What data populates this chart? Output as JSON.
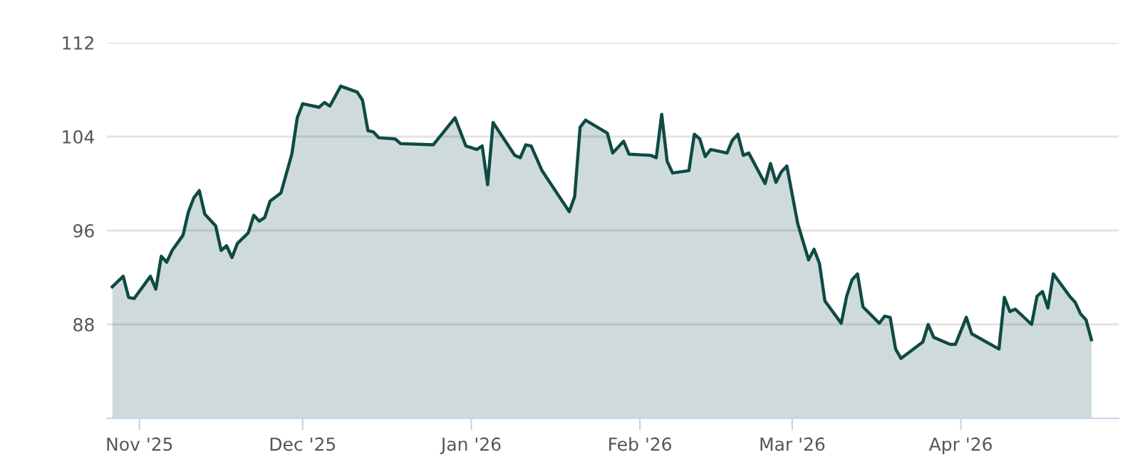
{
  "chart_data": {
    "type": "area",
    "x": [
      "2025-10-27",
      "2025-10-29",
      "2025-10-30",
      "2025-10-31",
      "2025-11-03",
      "2025-11-04",
      "2025-11-05",
      "2025-11-06",
      "2025-11-07",
      "2025-11-09",
      "2025-11-10",
      "2025-11-11",
      "2025-11-12",
      "2025-11-13",
      "2025-11-15",
      "2025-11-16",
      "2025-11-17",
      "2025-11-18",
      "2025-11-19",
      "2025-11-21",
      "2025-11-22",
      "2025-11-23",
      "2025-11-24",
      "2025-11-25",
      "2025-11-27",
      "2025-11-29",
      "2025-11-30",
      "2025-12-01",
      "2025-12-04",
      "2025-12-05",
      "2025-12-06",
      "2025-12-08",
      "2025-12-11",
      "2025-12-12",
      "2025-12-13",
      "2025-12-14",
      "2025-12-15",
      "2025-12-18",
      "2025-12-19",
      "2025-12-25",
      "2025-12-29",
      "2025-12-31",
      "2026-01-02",
      "2026-01-03",
      "2026-01-04",
      "2026-01-05",
      "2026-01-09",
      "2026-01-10",
      "2026-01-11",
      "2026-01-12",
      "2026-01-14",
      "2026-01-19",
      "2026-01-20",
      "2026-01-21",
      "2026-01-22",
      "2026-01-26",
      "2026-01-27",
      "2026-01-29",
      "2026-01-30",
      "2026-02-03",
      "2026-02-04",
      "2026-02-05",
      "2026-02-06",
      "2026-02-07",
      "2026-02-10",
      "2026-02-11",
      "2026-02-12",
      "2026-02-13",
      "2026-02-14",
      "2026-02-17",
      "2026-02-18",
      "2026-02-19",
      "2026-02-20",
      "2026-02-21",
      "2026-02-24",
      "2026-02-25",
      "2026-02-26",
      "2026-02-27",
      "2026-02-28",
      "2026-03-02",
      "2026-03-04",
      "2026-03-05",
      "2026-03-06",
      "2026-03-07",
      "2026-03-10",
      "2026-03-11",
      "2026-03-12",
      "2026-03-13",
      "2026-03-14",
      "2026-03-17",
      "2026-03-18",
      "2026-03-19",
      "2026-03-20",
      "2026-03-21",
      "2026-03-25",
      "2026-03-26",
      "2026-03-27",
      "2026-03-30",
      "2026-03-31",
      "2026-04-02",
      "2026-04-03",
      "2026-04-08",
      "2026-04-09",
      "2026-04-10",
      "2026-04-11",
      "2026-04-14",
      "2026-04-15",
      "2026-04-16",
      "2026-04-17",
      "2026-04-18",
      "2026-04-21",
      "2026-04-22",
      "2026-04-23",
      "2026-04-24",
      "2026-04-25"
    ],
    "series": [
      {
        "color": "#0f4a44",
        "values": [
          91.2,
          92.1,
          90.3,
          90.2,
          92.1,
          91.0,
          93.8,
          93.3,
          94.3,
          95.6,
          97.6,
          98.8,
          99.4,
          97.4,
          96.4,
          94.3,
          94.7,
          93.7,
          94.9,
          95.8,
          97.3,
          96.8,
          97.1,
          98.5,
          99.2,
          102.5,
          105.6,
          106.8,
          106.5,
          106.9,
          106.6,
          108.3,
          107.8,
          107.1,
          104.5,
          104.4,
          103.9,
          103.8,
          103.4,
          103.3,
          105.6,
          103.2,
          102.9,
          103.2,
          99.9,
          105.2,
          102.4,
          102.2,
          103.3,
          103.2,
          101.1,
          97.6,
          98.9,
          104.8,
          105.4,
          104.3,
          102.6,
          103.6,
          102.5,
          102.4,
          102.2,
          105.9,
          101.9,
          100.9,
          101.1,
          104.2,
          103.8,
          102.3,
          102.9,
          102.6,
          103.7,
          104.2,
          102.4,
          102.6,
          100.0,
          101.7,
          100.1,
          101.0,
          101.5,
          96.6,
          93.5,
          94.4,
          93.2,
          90.0,
          88.1,
          90.4,
          91.8,
          92.3,
          89.5,
          88.1,
          88.7,
          88.6,
          85.9,
          85.1,
          86.5,
          88.0,
          86.9,
          86.3,
          86.3,
          88.6,
          87.2,
          85.9,
          90.3,
          89.1,
          89.3,
          88.0,
          90.4,
          90.8,
          89.4,
          92.3,
          90.4,
          89.9,
          88.9,
          88.4,
          86.7
        ]
      }
    ],
    "xlim": [
      "2025-10-26",
      "2026-04-30"
    ],
    "xticks": [
      {
        "value": "2025-11-01",
        "label": "Nov '25"
      },
      {
        "value": "2025-12-01",
        "label": "Dec '25"
      },
      {
        "value": "2026-01-01",
        "label": "Jan '26"
      },
      {
        "value": "2026-02-01",
        "label": "Feb '26"
      },
      {
        "value": "2026-03-01",
        "label": "Mar '26"
      },
      {
        "value": "2026-04-01",
        "label": "Apr '26"
      }
    ],
    "ylim": [
      80,
      112
    ],
    "yticks": [
      88,
      96,
      104,
      112
    ],
    "grid": "y",
    "legend": false,
    "marker": "none",
    "line_style": "solid"
  }
}
